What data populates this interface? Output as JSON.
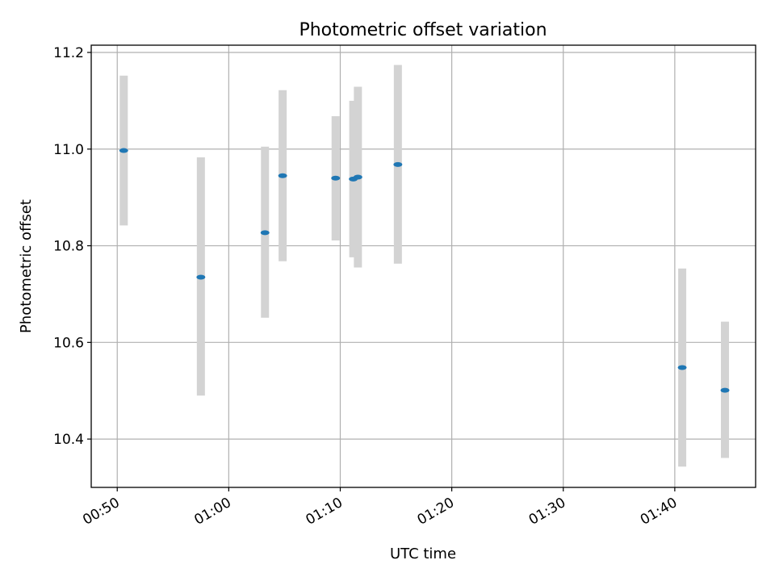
{
  "chart_data": {
    "type": "scatter",
    "title": "Photometric offset variation",
    "xlabel": "UTC time",
    "ylabel": "Photometric offset",
    "x_ticks": [
      "00:50",
      "01:00",
      "01:10",
      "01:20",
      "01:30",
      "01:40"
    ],
    "y_ticks": [
      "10.4",
      "10.6",
      "10.8",
      "11.0",
      "11.2"
    ],
    "xlim": [
      "00:47:40",
      "01:47:15"
    ],
    "ylim": [
      10.3,
      11.215
    ],
    "grid": true,
    "marker_color": "#1f77b4",
    "errorbar_color": "#d3d3d3",
    "points": [
      {
        "time": "00:50:35",
        "value": 10.997,
        "lower": 10.842,
        "upper": 11.152
      },
      {
        "time": "00:57:30",
        "value": 10.735,
        "lower": 10.49,
        "upper": 10.983
      },
      {
        "time": "01:03:15",
        "value": 10.827,
        "lower": 10.651,
        "upper": 11.005
      },
      {
        "time": "01:04:50",
        "value": 10.945,
        "lower": 10.768,
        "upper": 11.122
      },
      {
        "time": "01:09:35",
        "value": 10.94,
        "lower": 10.811,
        "upper": 11.068
      },
      {
        "time": "01:11:10",
        "value": 10.938,
        "lower": 10.776,
        "upper": 11.1
      },
      {
        "time": "01:11:35",
        "value": 10.942,
        "lower": 10.755,
        "upper": 11.129
      },
      {
        "time": "01:15:10",
        "value": 10.968,
        "lower": 10.763,
        "upper": 11.174
      },
      {
        "time": "01:40:40",
        "value": 10.548,
        "lower": 10.343,
        "upper": 10.753
      },
      {
        "time": "01:44:30",
        "value": 10.501,
        "lower": 10.361,
        "upper": 10.643
      }
    ]
  }
}
